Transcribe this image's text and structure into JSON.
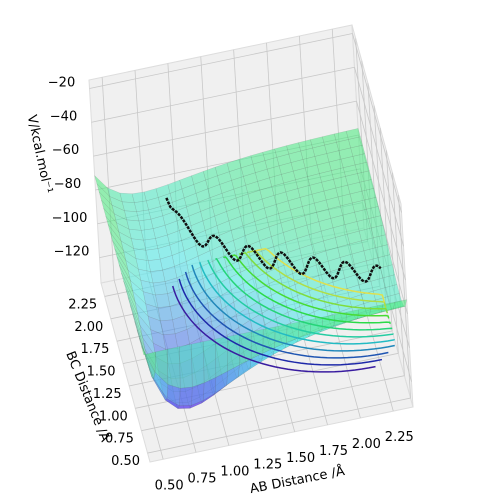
{
  "chart_data": {
    "type": "surface3d",
    "xlabel": "AB Distance /Å",
    "ylabel": "BC Distance /Å",
    "zlabel": "V/kcal.mol⁻¹",
    "xlim": [
      0.4,
      2.4
    ],
    "ylim": [
      0.4,
      2.4
    ],
    "zlim": [
      -135,
      -15
    ],
    "xticks": [
      {
        "value": 0.5,
        "label": "0.50"
      },
      0.75,
      {
        "value": 1.0,
        "label": "1.00"
      },
      1.25,
      {
        "value": 1.5,
        "label": "1.50"
      },
      1.75,
      {
        "value": 2.0,
        "label": "2.00"
      },
      2.25
    ],
    "yticks": [
      {
        "value": 0.5,
        "label": "0.50"
      },
      0.75,
      {
        "value": 1.0,
        "label": "1.00"
      },
      1.25,
      {
        "value": 1.5,
        "label": "1.50"
      },
      1.75,
      {
        "value": 2.0,
        "label": "2.00"
      },
      2.25
    ],
    "zticks": [
      {
        "value": -20,
        "label": "−20"
      },
      {
        "value": -40,
        "label": "−40"
      },
      {
        "value": -60,
        "label": "−60"
      },
      {
        "value": -80,
        "label": "−80"
      },
      {
        "value": -100,
        "label": "−100"
      },
      {
        "value": -120,
        "label": "−120"
      }
    ],
    "grid": true
  }
}
